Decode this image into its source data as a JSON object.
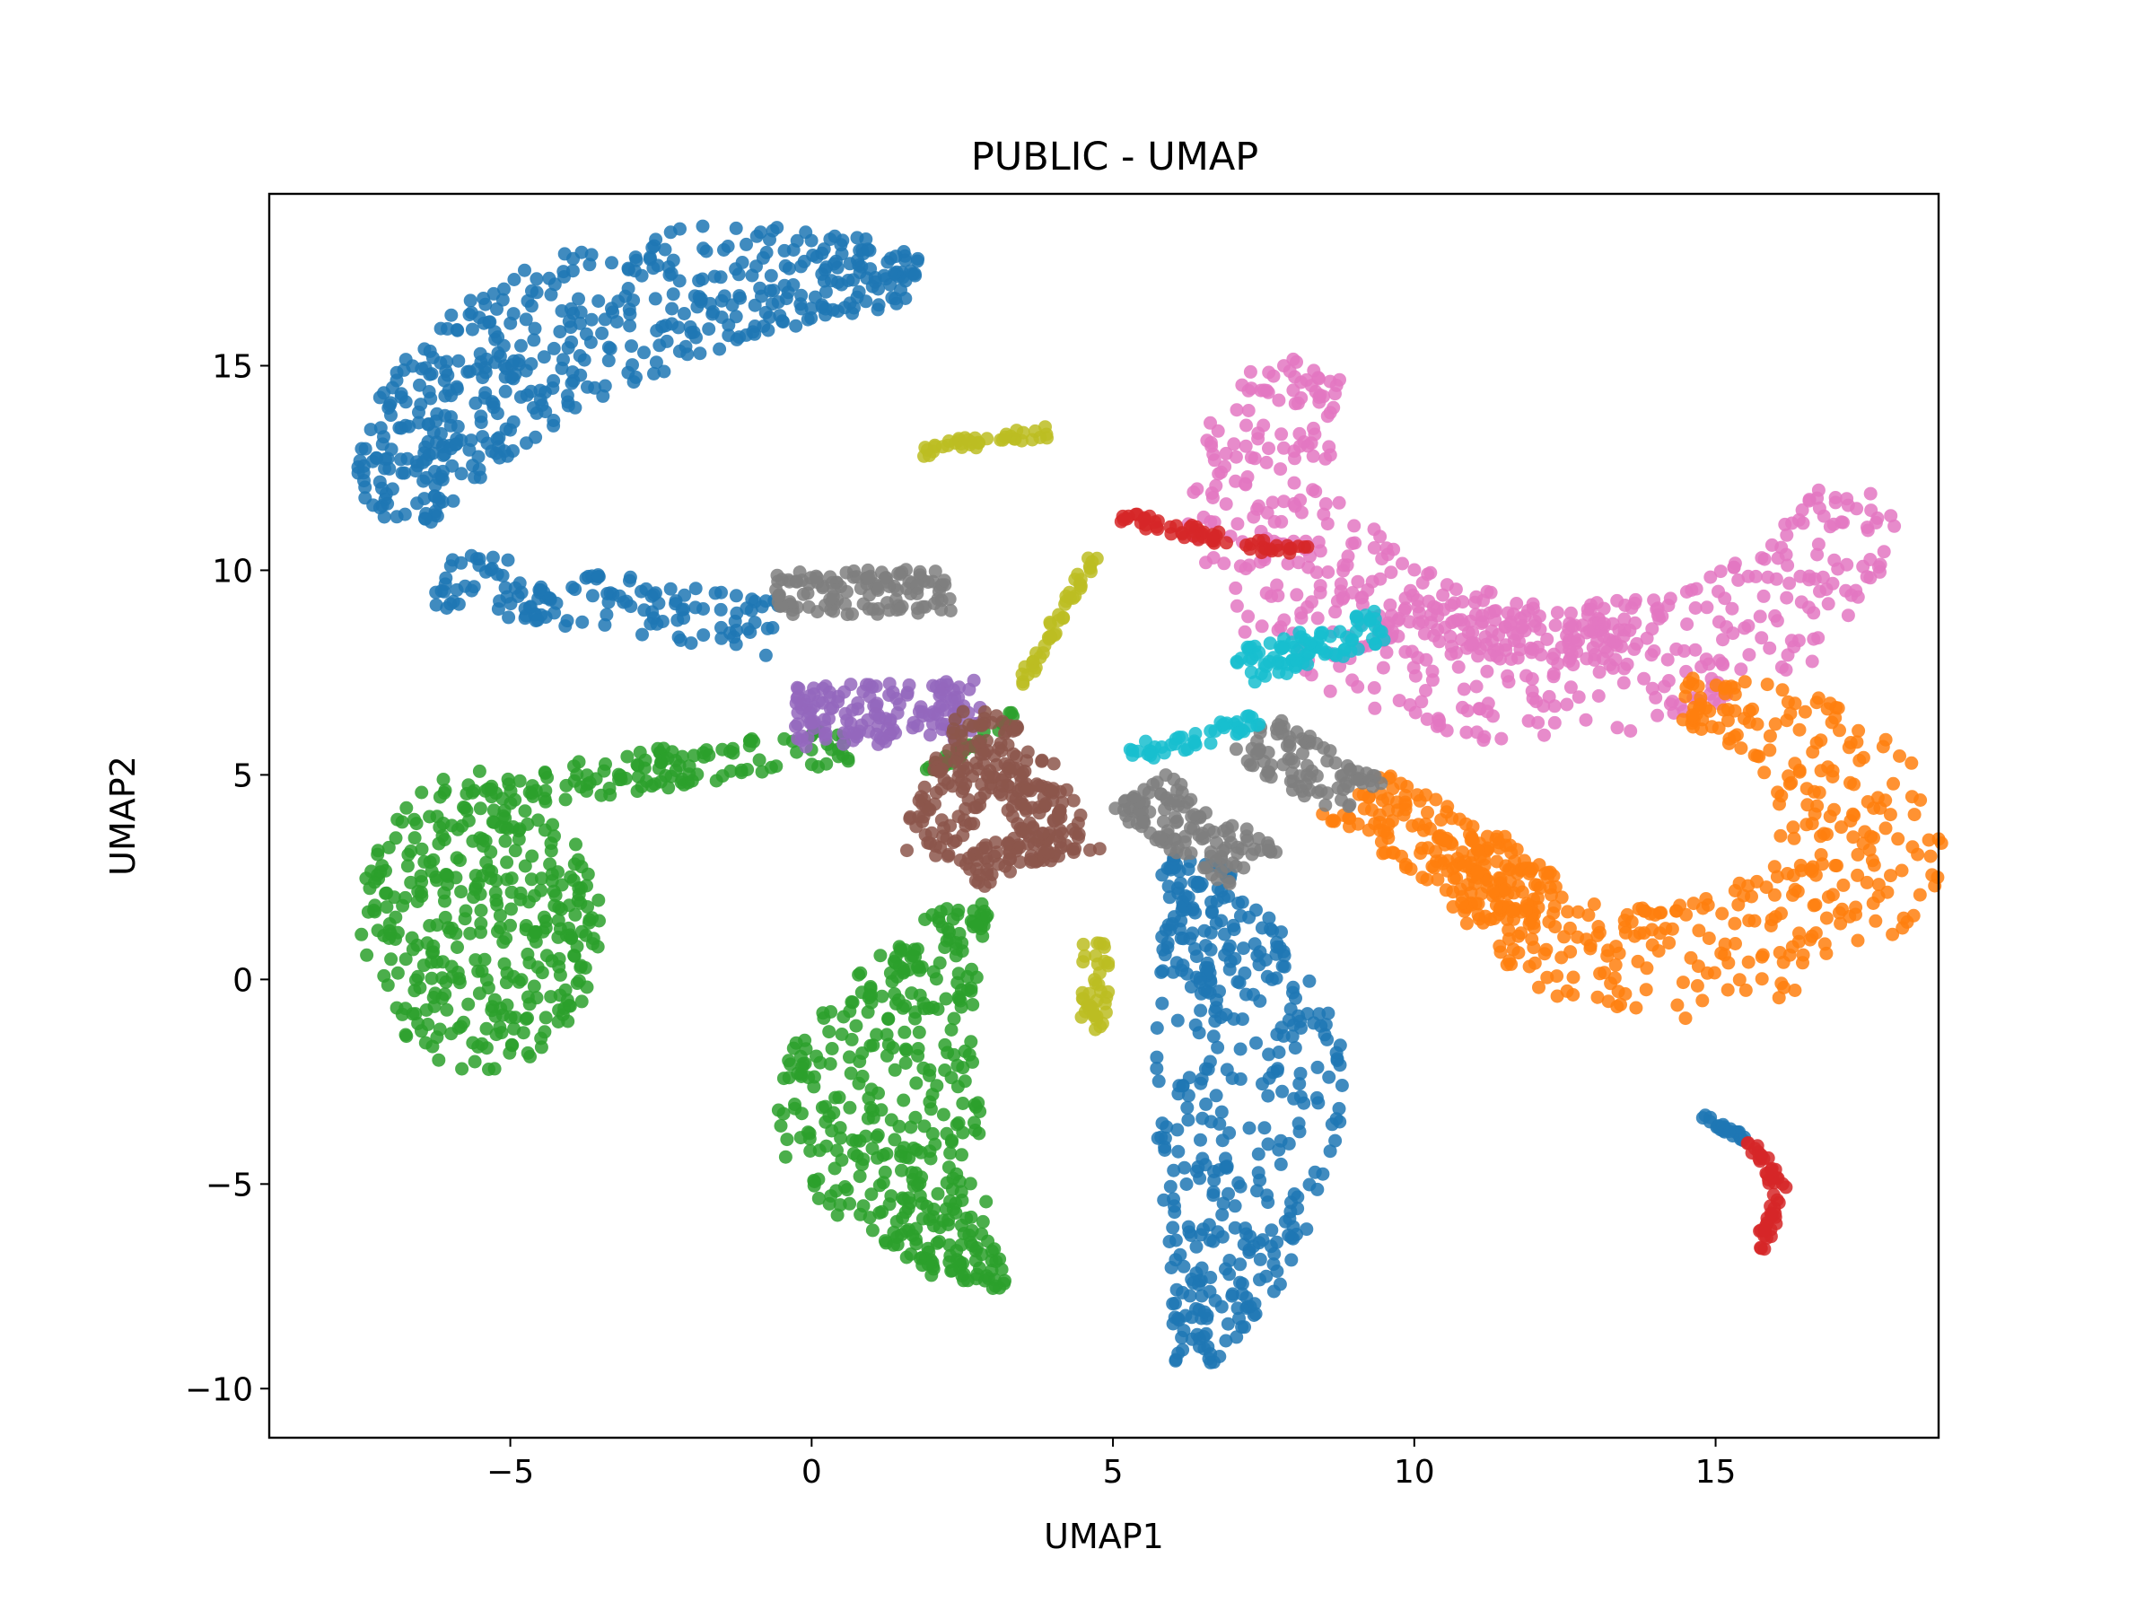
{
  "chart_data": {
    "type": "scatter",
    "title": "PUBLIC - UMAP",
    "xlabel": "UMAP1",
    "ylabel": "UMAP2",
    "xlim": [
      -9.0,
      18.7
    ],
    "ylim": [
      -11.2,
      19.2
    ],
    "xticks": [
      -5,
      0,
      5,
      10,
      15
    ],
    "xtick_labels": [
      "−5",
      "0",
      "5",
      "10",
      "15"
    ],
    "yticks": [
      -10,
      -5,
      0,
      5,
      10,
      15
    ],
    "ytick_labels": [
      "−10",
      "−5",
      "0",
      "5",
      "10",
      "15"
    ],
    "grid": false,
    "legend": "none",
    "series": [
      {
        "color": "#1f77b4",
        "regions": [
          {
            "kind": "arc",
            "cx": 0.2,
            "cy": 10.0,
            "r": 7.2,
            "start_deg": 170,
            "end_deg": 78,
            "thickness": 3.4,
            "points": 520
          },
          {
            "kind": "band",
            "x0": -6.2,
            "y0": 9.8,
            "x1": -0.6,
            "y1": 8.6,
            "thickness": 1.4,
            "points": 140
          },
          {
            "kind": "crescent",
            "x0": 6.2,
            "y0": 3.0,
            "x1": 8.3,
            "y1": -2.5,
            "x2": 6.4,
            "y2": -9.4,
            "thickness": 3.2,
            "points": 420
          },
          {
            "kind": "band",
            "x0": 14.7,
            "y0": -3.3,
            "x1": 15.5,
            "y1": -3.9,
            "thickness": 0.15,
            "points": 25
          }
        ]
      },
      {
        "color": "#2ca02c",
        "regions": [
          {
            "kind": "blob",
            "cx": -5.5,
            "cy": 1.4,
            "rx": 2.0,
            "ry": 3.7,
            "points": 380
          },
          {
            "kind": "band",
            "x0": -4.5,
            "y0": 4.8,
            "x1": 0.6,
            "y1": 5.7,
            "thickness": 1.0,
            "points": 110
          },
          {
            "kind": "crescent",
            "x0": 2.6,
            "y0": 1.8,
            "x1": -0.6,
            "y1": -3.8,
            "x2": 3.0,
            "y2": -7.6,
            "thickness": 3.4,
            "points": 420
          },
          {
            "kind": "band",
            "x0": 1.9,
            "y0": 5.0,
            "x1": 3.4,
            "y1": 6.5,
            "thickness": 0.2,
            "points": 30
          }
        ]
      },
      {
        "color": "#e377c2",
        "regions": [
          {
            "kind": "arc",
            "cx": 12.4,
            "cy": 12.4,
            "r": 4.9,
            "start_deg": 148,
            "end_deg": 355,
            "thickness": 3.6,
            "points": 520
          },
          {
            "kind": "band",
            "x0": 9.0,
            "y0": 8.7,
            "x1": 13.6,
            "y1": 8.2,
            "thickness": 1.3,
            "points": 120
          }
        ]
      },
      {
        "color": "#ff7f0e",
        "regions": [
          {
            "kind": "arc",
            "cx": 14.2,
            "cy": 3.6,
            "r": 3.2,
            "start_deg": 85,
            "end_deg": -180,
            "thickness": 3.0,
            "points": 420
          },
          {
            "kind": "band",
            "x0": 9.0,
            "y0": 4.6,
            "x1": 12.0,
            "y1": 1.8,
            "thickness": 1.6,
            "points": 160
          }
        ]
      },
      {
        "color": "#7f7f7f",
        "regions": [
          {
            "kind": "band",
            "x0": -0.6,
            "y0": 9.4,
            "x1": 2.3,
            "y1": 9.5,
            "thickness": 1.1,
            "points": 120
          },
          {
            "kind": "band",
            "x0": 5.4,
            "y0": 4.6,
            "x1": 7.3,
            "y1": 2.7,
            "thickness": 1.3,
            "points": 120
          },
          {
            "kind": "band",
            "x0": 7.3,
            "y0": 6.0,
            "x1": 9.1,
            "y1": 4.4,
            "thickness": 1.2,
            "points": 90
          }
        ]
      },
      {
        "color": "#9467bd",
        "regions": [
          {
            "kind": "band",
            "x0": -0.3,
            "y0": 6.4,
            "x1": 2.8,
            "y1": 6.6,
            "thickness": 1.5,
            "points": 150
          }
        ]
      },
      {
        "color": "#8c564b",
        "regions": [
          {
            "kind": "band",
            "x0": 3.0,
            "y0": 6.6,
            "x1": 1.9,
            "y1": 3.0,
            "thickness": 1.1,
            "points": 120
          },
          {
            "kind": "band",
            "x0": 3.3,
            "y0": 5.6,
            "x1": 4.3,
            "y1": 3.0,
            "thickness": 1.2,
            "points": 110
          },
          {
            "kind": "band",
            "x0": 2.6,
            "y0": 2.6,
            "x1": 4.0,
            "y1": 3.4,
            "thickness": 0.9,
            "points": 60
          }
        ]
      },
      {
        "color": "#bcbd22",
        "regions": [
          {
            "kind": "band",
            "x0": 1.8,
            "y0": 12.9,
            "x1": 3.9,
            "y1": 13.4,
            "thickness": 0.35,
            "points": 40
          },
          {
            "kind": "band",
            "x0": 3.4,
            "y0": 7.0,
            "x1": 4.7,
            "y1": 10.4,
            "thickness": 0.2,
            "points": 45
          },
          {
            "kind": "band",
            "x0": 4.7,
            "y0": 0.9,
            "x1": 4.7,
            "y1": -1.3,
            "thickness": 0.45,
            "points": 40
          }
        ]
      },
      {
        "color": "#d62728",
        "regions": [
          {
            "kind": "band",
            "x0": 5.1,
            "y0": 11.3,
            "x1": 8.2,
            "y1": 10.4,
            "thickness": 0.35,
            "points": 60
          },
          {
            "kind": "band",
            "x0": 15.6,
            "y0": -3.9,
            "x1": 16.1,
            "y1": -5.2,
            "thickness": 0.25,
            "points": 25
          },
          {
            "kind": "band",
            "x0": 16.1,
            "y0": -5.2,
            "x1": 15.7,
            "y1": -6.6,
            "thickness": 0.25,
            "points": 25
          }
        ]
      },
      {
        "color": "#17becf",
        "regions": [
          {
            "kind": "band",
            "x0": 7.1,
            "y0": 7.6,
            "x1": 9.5,
            "y1": 8.6,
            "thickness": 0.9,
            "points": 90
          },
          {
            "kind": "band",
            "x0": 5.3,
            "y0": 5.5,
            "x1": 7.4,
            "y1": 6.3,
            "thickness": 0.45,
            "points": 45
          }
        ]
      }
    ]
  }
}
